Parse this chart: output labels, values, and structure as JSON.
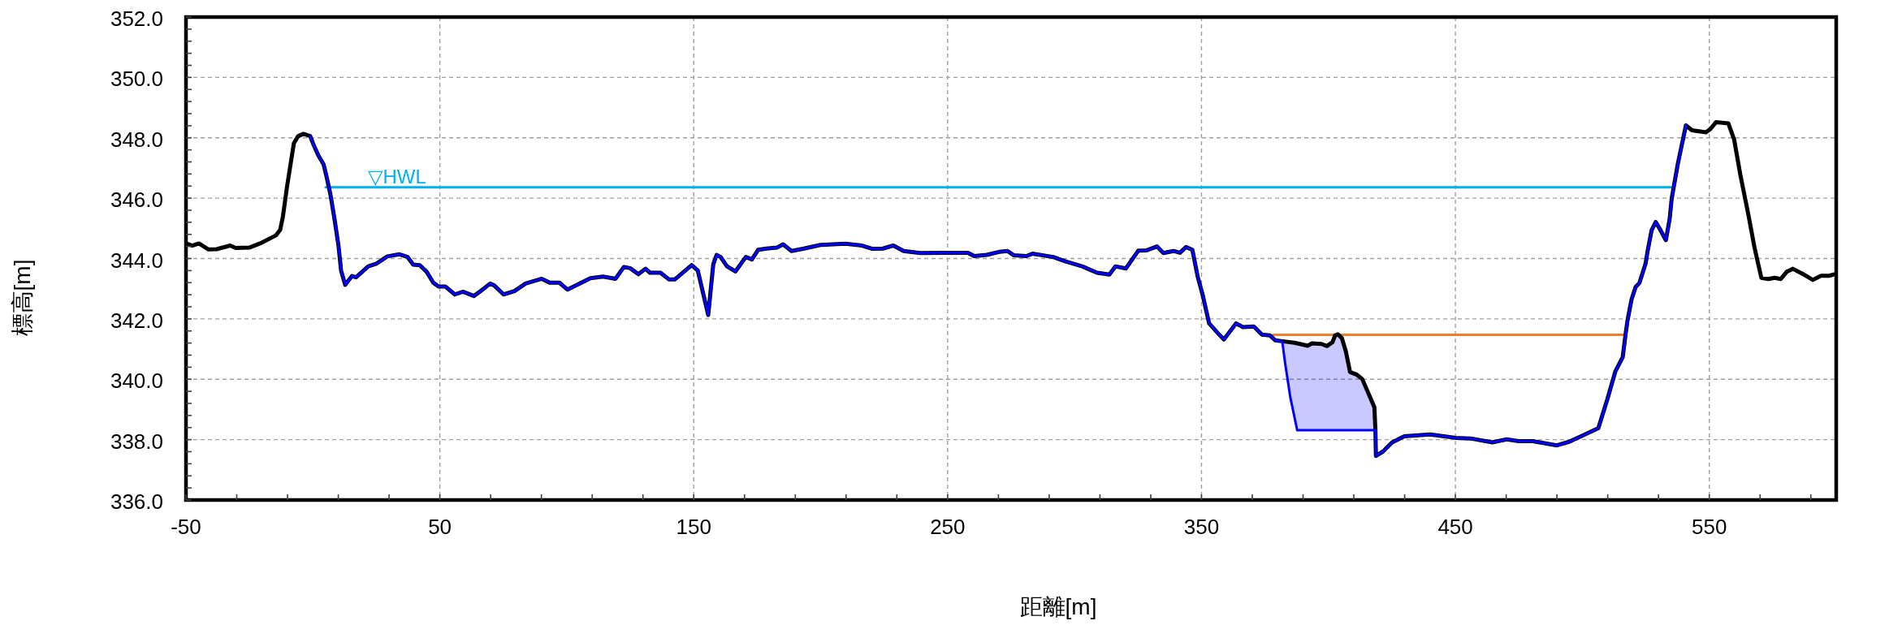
{
  "chart_data": {
    "type": "line",
    "xlabel": "距離[m]",
    "ylabel": "標高[m]",
    "xlim": [
      -50,
      600
    ],
    "ylim": [
      336,
      352
    ],
    "grid": true,
    "xticks": [
      -50,
      {
        "value": -30,
        "label": null
      },
      {
        "value": -10,
        "label": null
      },
      {
        "value": 10,
        "label": null
      },
      {
        "value": 30,
        "label": null
      },
      50,
      {
        "value": 70,
        "label": null
      },
      {
        "value": 90,
        "label": null
      },
      {
        "value": 110,
        "label": null
      },
      {
        "value": 130,
        "label": null
      },
      150,
      {
        "value": 170,
        "label": null
      },
      {
        "value": 190,
        "label": null
      },
      {
        "value": 210,
        "label": null
      },
      {
        "value": 230,
        "label": null
      },
      250,
      {
        "value": 270,
        "label": null
      },
      {
        "value": 290,
        "label": null
      },
      {
        "value": 310,
        "label": null
      },
      {
        "value": 330,
        "label": null
      },
      350,
      {
        "value": 370,
        "label": null
      },
      {
        "value": 390,
        "label": null
      },
      {
        "value": 410,
        "label": null
      },
      {
        "value": 430,
        "label": null
      },
      450,
      {
        "value": 470,
        "label": null
      },
      {
        "value": 490,
        "label": null
      },
      {
        "value": 510,
        "label": null
      },
      {
        "value": 530,
        "label": null
      },
      550,
      {
        "value": 570,
        "label": null
      },
      {
        "value": 590,
        "label": null
      }
    ],
    "yticks": [
      {
        "value": 336,
        "label": "336.0"
      },
      {
        "value": 336.4,
        "label": null
      },
      {
        "value": 336.8,
        "label": null
      },
      {
        "value": 337.2,
        "label": null
      },
      {
        "value": 337.6,
        "label": null
      },
      {
        "value": 338,
        "label": "338.0"
      },
      {
        "value": 338.4,
        "label": null
      },
      {
        "value": 338.8,
        "label": null
      },
      {
        "value": 339.2,
        "label": null
      },
      {
        "value": 339.6,
        "label": null
      },
      {
        "value": 340,
        "label": "340.0"
      },
      {
        "value": 340.4,
        "label": null
      },
      {
        "value": 340.8,
        "label": null
      },
      {
        "value": 341.2,
        "label": null
      },
      {
        "value": 341.6,
        "label": null
      },
      {
        "value": 342,
        "label": "342.0"
      },
      {
        "value": 342.4,
        "label": null
      },
      {
        "value": 342.8,
        "label": null
      },
      {
        "value": 343.2,
        "label": null
      },
      {
        "value": 343.6,
        "label": null
      },
      {
        "value": 344,
        "label": "344.0"
      },
      {
        "value": 344.4,
        "label": null
      },
      {
        "value": 344.8,
        "label": null
      },
      {
        "value": 345.2,
        "label": null
      },
      {
        "value": 345.6,
        "label": null
      },
      {
        "value": 346,
        "label": "346.0"
      },
      {
        "value": 346.4,
        "label": null
      },
      {
        "value": 346.8,
        "label": null
      },
      {
        "value": 347.2,
        "label": null
      },
      {
        "value": 347.6,
        "label": null
      },
      {
        "value": 348,
        "label": "348.0"
      },
      {
        "value": 348.4,
        "label": null
      },
      {
        "value": 348.8,
        "label": null
      },
      {
        "value": 349.2,
        "label": null
      },
      {
        "value": 349.6,
        "label": null
      },
      {
        "value": 350,
        "label": "350.0"
      },
      {
        "value": 350.4,
        "label": null
      },
      {
        "value": 350.8,
        "label": null
      },
      {
        "value": 351.2,
        "label": null
      },
      {
        "value": 351.6,
        "label": null
      },
      {
        "value": 352,
        "label": "352.0"
      }
    ],
    "series": [
      {
        "name": "▽HWL",
        "color": "#00b0f0",
        "x": [
          5,
          535.5
        ],
        "values": [
          346.36,
          346.36
        ]
      },
      {
        "color": "#ed7d31",
        "x": [
          378.2,
          516.4
        ],
        "values": [
          341.47,
          341.47
        ]
      },
      {
        "color": "#000000",
        "x": [
          -50,
          -47.5,
          -44.9,
          -41.1,
          -37.9,
          -32.6,
          -30.4,
          -25.1,
          -20.8,
          -14.5,
          -12.9,
          -11.8,
          -10.2,
          -9.1,
          -7.5,
          -5.9,
          -3.7,
          -1.1,
          0,
          2.1,
          4.2,
          5.3,
          6.9,
          8.5,
          10.1,
          11.1,
          12.7,
          15.4,
          17,
          21.8,
          25,
          29.3,
          34.1,
          37.3,
          39.5,
          42.1,
          44.8,
          47.4,
          49.5,
          52.2,
          55.9,
          59.1,
          63.4,
          66,
          69.8,
          71.4,
          75.1,
          79.4,
          83.7,
          90.1,
          93.3,
          97.1,
          100.3,
          109.3,
          114.3,
          119.2,
          122.5,
          124.9,
          128.2,
          131,
          132.8,
          136.9,
          140.2,
          142.6,
          149.2,
          151.6,
          155.7,
          157.7,
          159,
          160.6,
          163.1,
          166.4,
          170.5,
          172.9,
          175.4,
          178.6,
          182.7,
          185.2,
          188.5,
          193.4,
          199.9,
          204.8,
          209.7,
          216.3,
          220.4,
          224.5,
          228.6,
          232.7,
          239.2,
          249,
          258,
          260.5,
          265.4,
          270.3,
          273.6,
          276,
          281,
          283.4,
          291.6,
          296.5,
          303,
          308.8,
          313.7,
          316.1,
          320.2,
          325.1,
          328.4,
          332.5,
          335,
          339,
          341.5,
          343.9,
          346.4,
          348.5,
          350.5,
          353,
          356.2,
          358.8,
          363.6,
          366.3,
          370.6,
          373.8,
          377,
          379.1,
          381.8,
          386.6,
          391.9,
          393.5,
          397.3,
          399.4,
          401.6,
          402.6,
          403.7,
          405.3,
          406.9,
          408.5,
          411.2,
          413.3,
          418.1,
          418.5,
          418.7,
          421.4,
          425.1,
          429.9,
          440,
          450,
          455.9,
          464.6,
          470.2,
          474.9,
          480.5,
          490,
          494.8,
          499.5,
          506.3,
          509.8,
          513,
          515.9,
          517,
          517.8,
          519.4,
          521,
          522.5,
          524.9,
          525.7,
          527.3,
          528.9,
          530.5,
          532.9,
          534.4,
          535.2,
          537.6,
          540.8,
          543.2,
          548.7,
          550.3,
          552.7,
          557.5,
          559.8,
          562.2,
          565.4,
          567.8,
          570.5,
          573.3,
          575.7,
          578.1,
          580.5,
          582.9,
          586.8,
          590.8,
          594,
          597.1,
          600
        ],
        "values": [
          344.5,
          344.43,
          344.5,
          344.3,
          344.31,
          344.43,
          344.35,
          344.36,
          344.5,
          344.77,
          344.95,
          345.4,
          346.38,
          346.97,
          347.82,
          348.05,
          348.13,
          348.06,
          347.82,
          347.42,
          347.12,
          346.74,
          346.12,
          345.31,
          344.41,
          343.6,
          343.13,
          343.42,
          343.38,
          343.74,
          343.83,
          344.07,
          344.14,
          344.05,
          343.8,
          343.78,
          343.56,
          343.2,
          343.07,
          343.07,
          342.81,
          342.9,
          342.76,
          342.92,
          343.17,
          343.11,
          342.81,
          342.92,
          343.17,
          343.33,
          343.2,
          343.2,
          342.97,
          343.35,
          343.4,
          343.33,
          343.72,
          343.68,
          343.48,
          343.66,
          343.53,
          343.53,
          343.31,
          343.31,
          343.78,
          343.6,
          342.13,
          343.81,
          344.12,
          344.05,
          343.74,
          343.57,
          344.05,
          343.97,
          344.29,
          344.33,
          344.36,
          344.47,
          344.25,
          344.33,
          344.45,
          344.47,
          344.49,
          344.43,
          344.32,
          344.33,
          344.43,
          344.25,
          344.18,
          344.19,
          344.19,
          344.08,
          344.12,
          344.22,
          344.25,
          344.11,
          344.08,
          344.16,
          344.05,
          343.9,
          343.74,
          343.53,
          343.47,
          343.74,
          343.67,
          344.26,
          344.27,
          344.4,
          344.18,
          344.25,
          344.19,
          344.38,
          344.29,
          343.4,
          342.78,
          341.85,
          341.55,
          341.32,
          341.85,
          341.73,
          341.75,
          341.48,
          341.45,
          341.29,
          341.26,
          341.21,
          341.11,
          341.19,
          341.17,
          341.1,
          341.23,
          341.45,
          341.49,
          341.36,
          340.91,
          340.24,
          340.15,
          340.01,
          339.07,
          338.31,
          337.46,
          337.6,
          337.91,
          338.11,
          338.17,
          338.06,
          338.04,
          337.91,
          338.01,
          337.95,
          337.95,
          337.81,
          337.93,
          338.11,
          338.38,
          339.32,
          340.26,
          340.73,
          341.47,
          341.95,
          342.65,
          343.06,
          343.19,
          343.83,
          344.24,
          344.94,
          345.21,
          344.98,
          344.61,
          345.31,
          345.99,
          347.13,
          348.41,
          348.25,
          348.18,
          348.28,
          348.52,
          348.48,
          347.94,
          346.79,
          345.45,
          344.37,
          343.36,
          343.32,
          343.36,
          343.32,
          343.56,
          343.66,
          343.49,
          343.29,
          343.43,
          343.43,
          343.49
        ]
      },
      {
        "color": "#0000ff",
        "x": [
          -1.1,
          0,
          2.1,
          4.2,
          5.3,
          6.9,
          8.5,
          10.1,
          11.1,
          12.7,
          15.4,
          17,
          21.8,
          25,
          29.3,
          34.1,
          37.3,
          39.5,
          42.1,
          44.8,
          47.4,
          49.5,
          52.2,
          55.9,
          59.1,
          63.4,
          66,
          69.8,
          71.4,
          75.1,
          79.4,
          83.7,
          90.1,
          93.3,
          97.1,
          100.3,
          109.3,
          114.3,
          119.2,
          122.5,
          124.9,
          128.2,
          131,
          132.8,
          136.9,
          140.2,
          142.6,
          149.2,
          151.6,
          155.7,
          157.7,
          159,
          160.6,
          163.1,
          166.4,
          170.5,
          172.9,
          175.4,
          178.6,
          182.7,
          185.2,
          188.5,
          193.4,
          199.9,
          204.8,
          209.7,
          216.3,
          220.4,
          224.5,
          228.6,
          232.7,
          239.2,
          249,
          258,
          260.5,
          265.4,
          270.3,
          273.6,
          276,
          281,
          283.4,
          291.6,
          296.5,
          303,
          308.8,
          313.7,
          316.1,
          320.2,
          325.1,
          328.4,
          332.5,
          335,
          339,
          341.5,
          343.9,
          346.4,
          348.5,
          350.5,
          353,
          356.2,
          358.8,
          363.6,
          366.3,
          370.6,
          373.8,
          377,
          379.1,
          381.8,
          382.9,
          385,
          386.6,
          387.7,
          391.9,
          393.5,
          397.3,
          399.4,
          401.6,
          402.6,
          403.7,
          405.3,
          406.9,
          408.5,
          411.2,
          413.3,
          418.1,
          418.5,
          418.7,
          421.4,
          425.1,
          429.9,
          440,
          450,
          455.9,
          464.6,
          470.2,
          474.9,
          480.5,
          490,
          494.8,
          499.5,
          506.3,
          509.8,
          513,
          515.9,
          517,
          517.8,
          519.4,
          521,
          522.5,
          524.9,
          525.7,
          527.3,
          528.9,
          530.5,
          532.9,
          534.4,
          535.2,
          537.6,
          540.8
        ],
        "values": [
          348.06,
          347.82,
          347.42,
          347.12,
          346.74,
          346.12,
          345.31,
          344.41,
          343.6,
          343.13,
          343.42,
          343.38,
          343.74,
          343.83,
          344.07,
          344.14,
          344.05,
          343.8,
          343.78,
          343.56,
          343.2,
          343.07,
          343.07,
          342.81,
          342.9,
          342.76,
          342.92,
          343.17,
          343.11,
          342.81,
          342.92,
          343.17,
          343.33,
          343.2,
          343.2,
          342.97,
          343.35,
          343.4,
          343.33,
          343.72,
          343.68,
          343.48,
          343.66,
          343.53,
          343.53,
          343.31,
          343.31,
          343.78,
          343.6,
          342.13,
          343.81,
          344.12,
          344.05,
          343.74,
          343.57,
          344.05,
          343.97,
          344.29,
          344.33,
          344.36,
          344.47,
          344.25,
          344.33,
          344.45,
          344.47,
          344.49,
          344.43,
          344.32,
          344.33,
          344.43,
          344.25,
          344.18,
          344.19,
          344.19,
          344.08,
          344.12,
          344.22,
          344.25,
          344.11,
          344.08,
          344.16,
          344.05,
          343.9,
          343.74,
          343.53,
          343.47,
          343.74,
          343.67,
          344.26,
          344.27,
          344.4,
          344.18,
          344.25,
          344.19,
          344.38,
          344.29,
          343.4,
          342.78,
          341.85,
          341.55,
          341.32,
          341.85,
          341.73,
          341.75,
          341.48,
          341.45,
          341.29,
          341.26,
          340.55,
          339.39,
          338.75,
          338.31,
          338.31,
          338.31,
          338.31,
          338.31,
          338.31,
          338.31,
          338.31,
          338.31,
          338.31,
          338.31,
          338.31,
          338.31,
          338.31,
          338.31,
          337.46,
          337.6,
          337.91,
          338.11,
          338.17,
          338.06,
          338.04,
          337.91,
          338.01,
          337.95,
          337.95,
          337.81,
          337.93,
          338.11,
          338.38,
          339.32,
          340.26,
          340.73,
          341.47,
          341.95,
          342.65,
          343.06,
          343.19,
          343.83,
          344.24,
          344.94,
          345.21,
          344.98,
          344.61,
          345.31,
          345.99,
          347.13,
          348.41
        ],
        "lower": [
          null,
          null,
          null,
          null,
          null,
          null,
          null,
          null,
          null,
          null,
          null,
          null,
          null,
          null,
          null,
          null,
          null,
          null,
          null,
          null,
          null,
          null,
          null,
          null,
          null,
          null,
          null,
          null,
          null,
          null,
          null,
          null,
          null,
          null,
          null,
          null,
          null,
          null,
          null,
          null,
          null,
          null,
          null,
          null,
          null,
          null,
          null,
          null,
          null,
          null,
          null,
          null,
          null,
          null,
          null,
          null,
          null,
          null,
          null,
          null,
          null,
          null,
          null,
          null,
          null,
          null,
          null,
          null,
          null,
          null,
          null,
          null,
          null,
          null,
          null,
          null,
          null,
          null,
          null,
          null,
          null,
          null,
          null,
          null,
          null,
          null,
          null,
          null,
          null,
          null,
          null,
          null,
          null,
          null,
          null,
          null,
          null,
          null,
          null,
          null,
          null,
          null,
          null,
          null,
          null,
          null,
          null,
          341.26,
          340.55,
          339.39,
          338.75,
          338.31,
          338.31,
          338.31,
          338.31,
          338.31,
          338.31,
          338.31,
          338.31,
          338.31,
          338.31,
          338.31,
          338.31,
          338.31,
          338.31,
          338.31,
          null,
          null,
          null,
          null,
          null,
          null,
          null,
          null,
          null,
          null,
          null,
          null,
          null,
          null,
          null,
          null,
          null,
          null,
          null,
          null,
          null,
          null,
          null,
          null,
          null,
          null,
          null,
          null,
          null,
          null,
          null,
          null,
          null
        ],
        "upper": [
          null,
          null,
          null,
          null,
          null,
          null,
          null,
          null,
          null,
          null,
          null,
          null,
          null,
          null,
          null,
          null,
          null,
          null,
          null,
          null,
          null,
          null,
          null,
          null,
          null,
          null,
          null,
          null,
          null,
          null,
          null,
          null,
          null,
          null,
          null,
          null,
          null,
          null,
          null,
          null,
          null,
          null,
          null,
          null,
          null,
          null,
          null,
          null,
          null,
          null,
          null,
          null,
          null,
          null,
          null,
          null,
          null,
          null,
          null,
          null,
          null,
          null,
          null,
          null,
          null,
          null,
          null,
          null,
          null,
          null,
          null,
          null,
          null,
          null,
          null,
          null,
          null,
          null,
          null,
          null,
          null,
          null,
          null,
          null,
          null,
          null,
          null,
          null,
          null,
          null,
          null,
          null,
          null,
          null,
          null,
          null,
          null,
          null,
          null,
          null,
          null,
          null,
          null,
          null,
          null,
          null,
          null,
          341.26,
          341.25,
          341.23,
          341.21,
          341.19,
          341.11,
          341.19,
          341.17,
          341.1,
          341.23,
          341.45,
          341.49,
          341.36,
          340.91,
          340.24,
          340.15,
          340.01,
          339.07,
          338.31,
          null,
          null,
          null,
          null,
          null,
          null,
          null,
          null,
          null,
          null,
          null,
          null,
          null,
          null,
          null,
          null,
          null,
          null,
          null,
          null,
          null,
          null,
          null,
          null,
          null,
          null,
          null,
          null,
          null,
          null,
          null,
          null,
          null
        ]
      }
    ]
  }
}
